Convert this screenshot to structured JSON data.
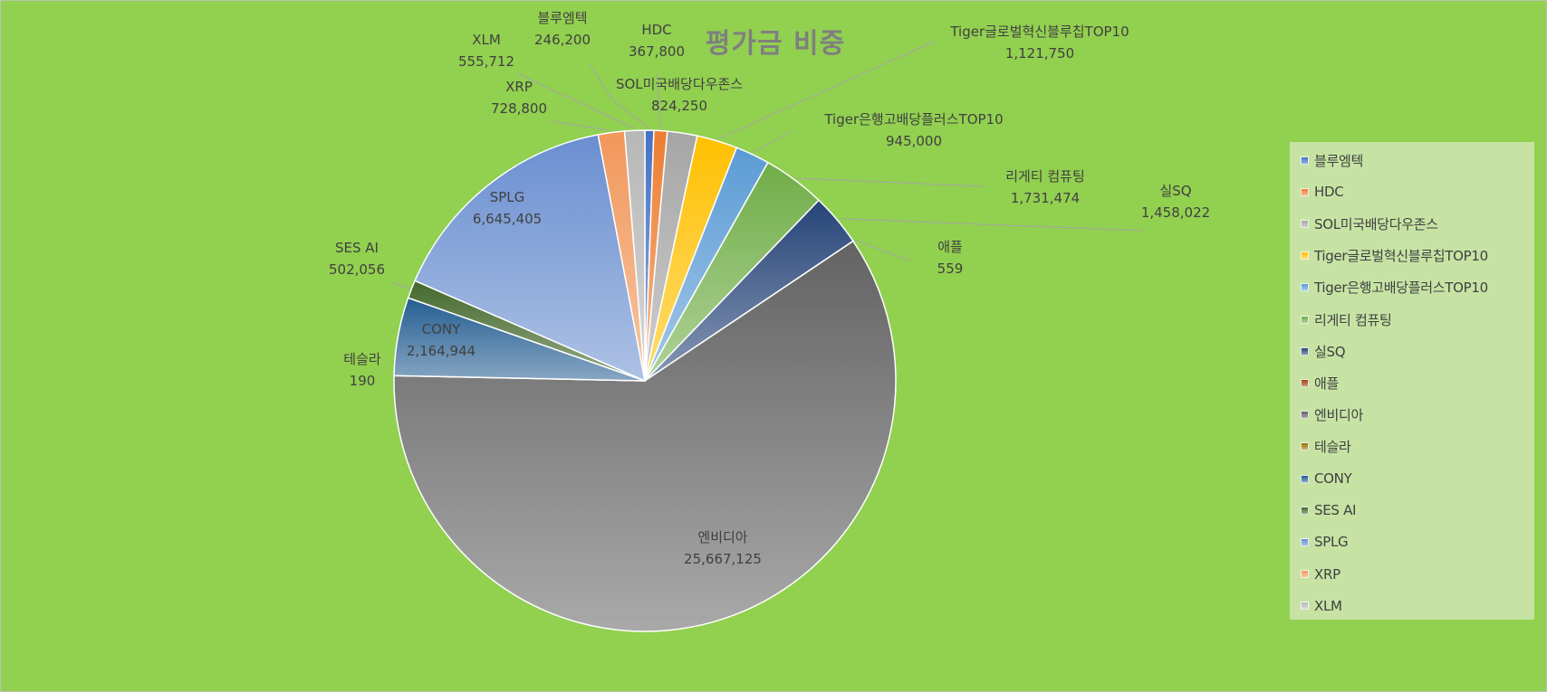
{
  "chart_data": {
    "type": "pie",
    "title": "평가금 비중",
    "legend_position": "right",
    "slices": [
      {
        "name": "블루엠텍",
        "value": 246200,
        "label_value": "246,200",
        "color": "#4472c4"
      },
      {
        "name": "HDC",
        "value": 367800,
        "label_value": "367,800",
        "color": "#ed7d31"
      },
      {
        "name": "SOL미국배당다우존스",
        "value": 824250,
        "label_value": "824,250",
        "color": "#a5a5a5"
      },
      {
        "name": "Tiger글로벌혁신블루칩TOP10",
        "value": 1121750,
        "label_value": "1,121,750",
        "color": "#ffc000"
      },
      {
        "name": "Tiger은행고배당플러스TOP10",
        "value": 945000,
        "label_value": "945,000",
        "color": "#5b9bd5"
      },
      {
        "name": "리게티 컴퓨팅",
        "value": 1731474,
        "label_value": "1,731,474",
        "color": "#70ad47"
      },
      {
        "name": "실SQ",
        "value": 1458022,
        "label_value": "1,458,022",
        "color": "#264478"
      },
      {
        "name": "애플",
        "value": 559,
        "label_value": "559",
        "color": "#9e480e"
      },
      {
        "name": "엔비디아",
        "value": 25667125,
        "label_value": "25,667,125",
        "color": "#636363"
      },
      {
        "name": "테슬라",
        "value": 190,
        "label_value": "190",
        "color": "#997300"
      },
      {
        "name": "CONY",
        "value": 2164944,
        "label_value": "2,164,944",
        "color": "#255e91"
      },
      {
        "name": "SES AI",
        "value": 502056,
        "label_value": "502,056",
        "color": "#43682b"
      },
      {
        "name": "SPLG",
        "value": 6645405,
        "label_value": "6,645,405",
        "color": "#698ed0"
      },
      {
        "name": "XRP",
        "value": 728800,
        "label_value": "728,800",
        "color": "#f1975a"
      },
      {
        "name": "XLM",
        "value": 555712,
        "label_value": "555,712",
        "color": "#b7b7b7"
      }
    ]
  }
}
